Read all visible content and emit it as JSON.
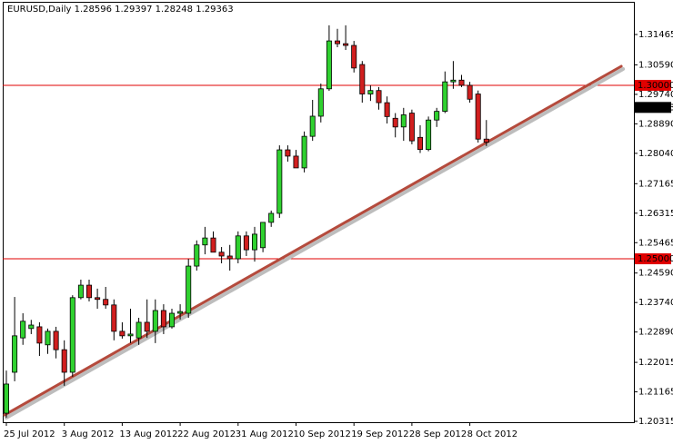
{
  "chart_data": {
    "type": "candlestick",
    "title": "EURUSD,Daily  1.28596 1.29397 1.28248 1.29363",
    "categories": [
      "25 Jul 2012",
      null,
      null,
      null,
      null,
      null,
      null,
      "3 Aug 2012",
      null,
      null,
      null,
      null,
      null,
      null,
      "13 Aug 2012",
      null,
      null,
      null,
      null,
      null,
      null,
      "22 Aug 2012",
      null,
      null,
      null,
      null,
      null,
      null,
      "31 Aug 2012",
      null,
      null,
      null,
      null,
      null,
      null,
      "10 Sep 2012",
      null,
      null,
      null,
      null,
      null,
      null,
      "19 Sep 2012",
      null,
      null,
      null,
      null,
      null,
      null,
      "28 Sep 2012",
      null,
      null,
      null,
      null,
      null,
      null,
      "8 Oct 2012",
      null,
      null
    ],
    "up_color": "#2fd12f",
    "down_color": "#d11f1f",
    "open": [
      1.2055,
      1.2173,
      1.2272,
      1.2299,
      1.2304,
      1.2252,
      1.2291,
      1.2238,
      1.2173,
      1.2388,
      1.2424,
      1.2388,
      1.2383,
      1.2367,
      1.2291,
      1.2278,
      1.2272,
      1.2317,
      1.2291,
      1.2351,
      1.2304,
      1.2343,
      1.2343,
      1.2479,
      1.254,
      1.256,
      1.2519,
      1.2508,
      1.25,
      1.2566,
      1.2526,
      1.2532,
      1.2605,
      1.2631,
      1.2814,
      1.2796,
      1.2762,
      1.2853,
      1.2911,
      1.299,
      1.3128,
      1.312,
      1.3115,
      1.306,
      1.2975,
      1.2985,
      1.295,
      1.2905,
      1.288,
      1.292,
      1.285,
      1.2815,
      1.29,
      1.2925,
      1.301,
      1.3015,
      1.3,
      1.2975,
      1.2845
    ],
    "high": [
      1.2178,
      1.239,
      1.2343,
      1.2324,
      1.2317,
      1.2299,
      1.2304,
      1.2265,
      1.2395,
      1.244,
      1.244,
      1.2414,
      1.2419,
      1.2383,
      1.2317,
      1.2356,
      1.233,
      1.2383,
      1.2383,
      1.2369,
      1.2356,
      1.2369,
      1.25,
      1.2553,
      1.2592,
      1.2579,
      1.2534,
      1.254,
      1.2579,
      1.2579,
      1.2592,
      1.2605,
      1.2639,
      1.2827,
      1.2827,
      1.2814,
      1.2867,
      1.2958,
      1.3005,
      1.3173,
      1.3163,
      1.3173,
      1.3128,
      1.307,
      1.3,
      1.2995,
      1.2968,
      1.292,
      1.2935,
      1.293,
      1.2885,
      1.291,
      1.2935,
      1.304,
      1.307,
      1.303,
      1.301,
      1.2985,
      1.29
    ],
    "low": [
      1.2042,
      1.2147,
      1.2252,
      1.2283,
      1.222,
      1.2226,
      1.2213,
      1.2134,
      1.216,
      1.2383,
      1.2377,
      1.2356,
      1.2356,
      1.2265,
      1.227,
      1.2257,
      1.2252,
      1.2272,
      1.2257,
      1.2283,
      1.2299,
      1.2325,
      1.233,
      1.2466,
      1.2513,
      1.2519,
      1.2487,
      1.2466,
      1.2487,
      1.2508,
      1.2492,
      1.2519,
      1.2592,
      1.2618,
      1.278,
      1.2762,
      1.2749,
      1.284,
      1.2893,
      1.2984,
      1.311,
      1.3102,
      1.3037,
      1.295,
      1.2955,
      1.293,
      1.289,
      1.285,
      1.284,
      1.283,
      1.2805,
      1.281,
      1.288,
      1.292,
      1.299,
      1.2995,
      1.295,
      1.2835,
      1.2825
    ],
    "close": [
      1.2139,
      1.2278,
      1.232,
      1.2309,
      1.2257,
      1.2291,
      1.2238,
      1.2173,
      1.2388,
      1.2424,
      1.2388,
      1.2383,
      1.2367,
      1.2291,
      1.2278,
      1.2283,
      1.2317,
      1.2291,
      1.2351,
      1.2304,
      1.2343,
      1.2348,
      1.2479,
      1.254,
      1.256,
      1.2519,
      1.2508,
      1.25,
      1.2566,
      1.2526,
      1.2571,
      1.2605,
      1.2631,
      1.2814,
      1.2796,
      1.2762,
      1.2853,
      1.2911,
      1.299,
      1.3128,
      1.312,
      1.3115,
      1.305,
      1.2975,
      1.2985,
      1.295,
      1.291,
      1.288,
      1.2915,
      1.284,
      1.2815,
      1.29,
      1.2925,
      1.301,
      1.3015,
      1.3,
      1.296,
      1.2845,
      1.2836
    ],
    "ylim": [
      1.2029,
      1.32381
    ],
    "yticks": [
      1.31465,
      {
        "value": 1.3059,
        "label": "1.30590"
      },
      {
        "value": 1.2974,
        "label": "1.29740"
      },
      {
        "value": 1.2889,
        "label": "1.28890"
      },
      {
        "value": 1.2804,
        "label": "1.28040"
      },
      1.27165,
      1.26315,
      1.25465,
      {
        "value": 1.2459,
        "label": "1.24590"
      },
      {
        "value": 1.2374,
        "label": "1.23740"
      },
      {
        "value": 1.2289,
        "label": "1.22890"
      },
      1.22015,
      1.21165,
      1.20315
    ],
    "hlines": [
      {
        "value": 1.3,
        "label": "1.30000"
      },
      {
        "value": 1.25,
        "label": "1.25000"
      }
    ],
    "hline_color": "#e00000",
    "last_price": {
      "value": 1.29363,
      "label": "1.29363"
    },
    "trendline": {
      "color": "#b44a3c",
      "x": [
        -0.22,
        74.3
      ],
      "values": [
        1.20499,
        1.30549
      ]
    }
  }
}
